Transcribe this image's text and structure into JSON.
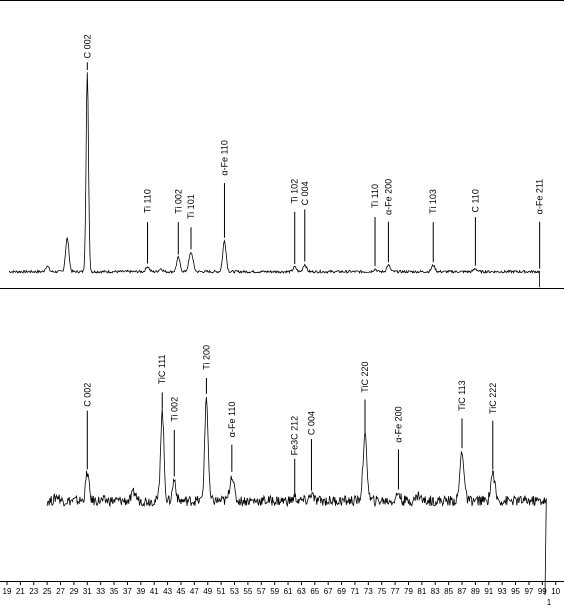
{
  "chart_data": {
    "type": "line",
    "x_axis": {
      "ticks": [
        19,
        21,
        23,
        25,
        27,
        29,
        31,
        33,
        35,
        37,
        39,
        41,
        43,
        45,
        47,
        49,
        51,
        53,
        55,
        57,
        59,
        61,
        63,
        65,
        67,
        69,
        71,
        73,
        75,
        77,
        79,
        81,
        83,
        85,
        87,
        89,
        91,
        93,
        95,
        97,
        99,
        "10"
      ],
      "end_fragment": "1",
      "range": [
        19,
        100
      ]
    },
    "grid": false,
    "panels": [
      {
        "name": "top",
        "y_range": [
          0,
          100
        ],
        "baseline": 4,
        "noise": 0.5,
        "x_start": 19.3,
        "x_end": 98.6,
        "peaks": [
          {
            "x": 25.0,
            "h": 2.2,
            "w": 0.25
          },
          {
            "x": 28.0,
            "h": 13.0,
            "w": 0.25
          },
          {
            "x": 31.0,
            "h": 77.0,
            "w": 0.18
          },
          {
            "x": 40.0,
            "h": 2.0,
            "w": 0.25
          },
          {
            "x": 42.0,
            "h": 1.2,
            "w": 0.25
          },
          {
            "x": 44.6,
            "h": 5.5,
            "w": 0.25
          },
          {
            "x": 46.5,
            "h": 7.5,
            "w": 0.3
          },
          {
            "x": 51.5,
            "h": 12.0,
            "w": 0.25
          },
          {
            "x": 62.0,
            "h": 1.8,
            "w": 0.25
          },
          {
            "x": 63.5,
            "h": 2.8,
            "w": 0.25
          },
          {
            "x": 74.0,
            "h": 1.0,
            "w": 0.25
          },
          {
            "x": 76.0,
            "h": 2.5,
            "w": 0.25
          },
          {
            "x": 82.7,
            "h": 2.5,
            "w": 0.25
          },
          {
            "x": 89.0,
            "h": 1.2,
            "w": 0.25
          }
        ],
        "end_spike": {
          "x": 98.6,
          "to": -2
        },
        "labels": [
          {
            "text": "C 002",
            "x": 31.0,
            "y": 96
          },
          {
            "text": "Ti 110",
            "x": 40.0,
            "y": 36
          },
          {
            "text": "Ti 002",
            "x": 44.6,
            "y": 36
          },
          {
            "text": "Ti 101",
            "x": 46.5,
            "y": 34
          },
          {
            "text": "α-Fe 110",
            "x": 51.5,
            "y": 55
          },
          {
            "text": "Ti 102",
            "x": 62.0,
            "y": 40
          },
          {
            "text": "C 004",
            "x": 63.5,
            "y": 39
          },
          {
            "text": "Ti 110",
            "x": 74.0,
            "y": 38
          },
          {
            "text": "α-Fe 200",
            "x": 76.0,
            "y": 40
          },
          {
            "text": "Ti 103",
            "x": 82.7,
            "y": 36
          },
          {
            "text": "C 110",
            "x": 89.0,
            "y": 36
          },
          {
            "text": "α-Fe 211",
            "x": 98.6,
            "y": 40
          }
        ]
      },
      {
        "name": "bottom",
        "y_range": [
          0,
          100
        ],
        "baseline": 34,
        "noise": 2.2,
        "x_start": 25.0,
        "x_end": 99.6,
        "peaks": [
          {
            "x": 26.5,
            "h": 2.0,
            "w": 0.3
          },
          {
            "x": 31.0,
            "h": 12.0,
            "w": 0.25
          },
          {
            "x": 38.0,
            "h": 3.5,
            "w": 0.3
          },
          {
            "x": 42.2,
            "h": 38.0,
            "w": 0.25
          },
          {
            "x": 44.0,
            "h": 9.0,
            "w": 0.25
          },
          {
            "x": 48.8,
            "h": 44.0,
            "w": 0.25
          },
          {
            "x": 52.6,
            "h": 11.0,
            "w": 0.3
          },
          {
            "x": 62.0,
            "h": 1.5,
            "w": 0.25
          },
          {
            "x": 64.5,
            "h": 3.0,
            "w": 0.25
          },
          {
            "x": 72.5,
            "h": 27.0,
            "w": 0.3
          },
          {
            "x": 77.5,
            "h": 3.5,
            "w": 0.25
          },
          {
            "x": 80.5,
            "h": 2.5,
            "w": 0.3
          },
          {
            "x": 87.0,
            "h": 21.0,
            "w": 0.3
          },
          {
            "x": 91.6,
            "h": 12.0,
            "w": 0.3
          }
        ],
        "end_spike": {
          "x": 99.4,
          "to": -6
        },
        "labels": [
          {
            "text": "C 002",
            "x": 31.0,
            "y": 84
          },
          {
            "text": "TiC 111",
            "x": 42.2,
            "y": 96
          },
          {
            "text": "Ti 002",
            "x": 44.0,
            "y": 78
          },
          {
            "text": "Ti 200",
            "x": 48.8,
            "y": 100
          },
          {
            "text": "α-Fe 110",
            "x": 52.6,
            "y": 76
          },
          {
            "text": "Fe3C 212",
            "x": 62.0,
            "y": 70
          },
          {
            "text": "C 004",
            "x": 64.5,
            "y": 72
          },
          {
            "text": "TiC 220",
            "x": 72.5,
            "y": 93
          },
          {
            "text": "α-Fe 200",
            "x": 77.5,
            "y": 74
          },
          {
            "text": "TiC 113",
            "x": 87.0,
            "y": 85
          },
          {
            "text": "TiC 222",
            "x": 91.6,
            "y": 84
          }
        ]
      }
    ]
  }
}
